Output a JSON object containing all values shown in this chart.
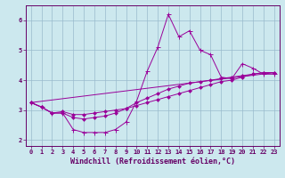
{
  "xlabel": "Windchill (Refroidissement éolien,°C)",
  "bg_color": "#cce8ee",
  "line_color": "#990099",
  "grid_color": "#99bbcc",
  "axis_color": "#660066",
  "xlim": [
    -0.5,
    23.5
  ],
  "ylim": [
    1.8,
    6.5
  ],
  "xticks": [
    0,
    1,
    2,
    3,
    4,
    5,
    6,
    7,
    8,
    9,
    10,
    11,
    12,
    13,
    14,
    15,
    16,
    17,
    18,
    19,
    20,
    21,
    22,
    23
  ],
  "yticks": [
    2,
    3,
    4,
    5,
    6
  ],
  "line1_x": [
    0,
    1,
    2,
    3,
    4,
    5,
    6,
    7,
    8,
    9,
    10,
    11,
    12,
    13,
    14,
    15,
    16,
    17,
    18,
    19,
    20,
    21,
    22,
    23
  ],
  "line1_y": [
    3.25,
    3.1,
    2.9,
    2.9,
    2.35,
    2.25,
    2.25,
    2.25,
    2.35,
    2.6,
    3.3,
    4.3,
    5.1,
    6.2,
    5.45,
    5.65,
    5.0,
    4.85,
    4.1,
    4.05,
    4.55,
    4.4,
    4.2,
    4.2
  ],
  "line2_x": [
    0,
    1,
    2,
    3,
    4,
    5,
    6,
    7,
    8,
    9,
    10,
    11,
    12,
    13,
    14,
    15,
    16,
    17,
    18,
    19,
    20,
    21,
    22,
    23
  ],
  "line2_y": [
    3.25,
    3.1,
    2.9,
    2.9,
    2.75,
    2.7,
    2.75,
    2.8,
    2.9,
    3.05,
    3.25,
    3.4,
    3.55,
    3.7,
    3.8,
    3.9,
    3.95,
    4.0,
    4.05,
    4.1,
    4.15,
    4.2,
    4.25,
    4.25
  ],
  "line3_x": [
    0,
    1,
    2,
    3,
    4,
    5,
    6,
    7,
    8,
    9,
    10,
    11,
    12,
    13,
    14,
    15,
    16,
    17,
    18,
    19,
    20,
    21,
    22,
    23
  ],
  "line3_y": [
    3.25,
    3.1,
    2.9,
    2.95,
    2.85,
    2.85,
    2.9,
    2.95,
    3.0,
    3.05,
    3.15,
    3.25,
    3.35,
    3.45,
    3.55,
    3.65,
    3.75,
    3.85,
    3.95,
    4.0,
    4.1,
    4.2,
    4.25,
    4.25
  ],
  "line4_x": [
    0,
    23
  ],
  "line4_y": [
    3.25,
    4.25
  ],
  "font_size": 6,
  "tick_label_size": 5,
  "marker_size": 2.0,
  "linewidth": 0.7
}
